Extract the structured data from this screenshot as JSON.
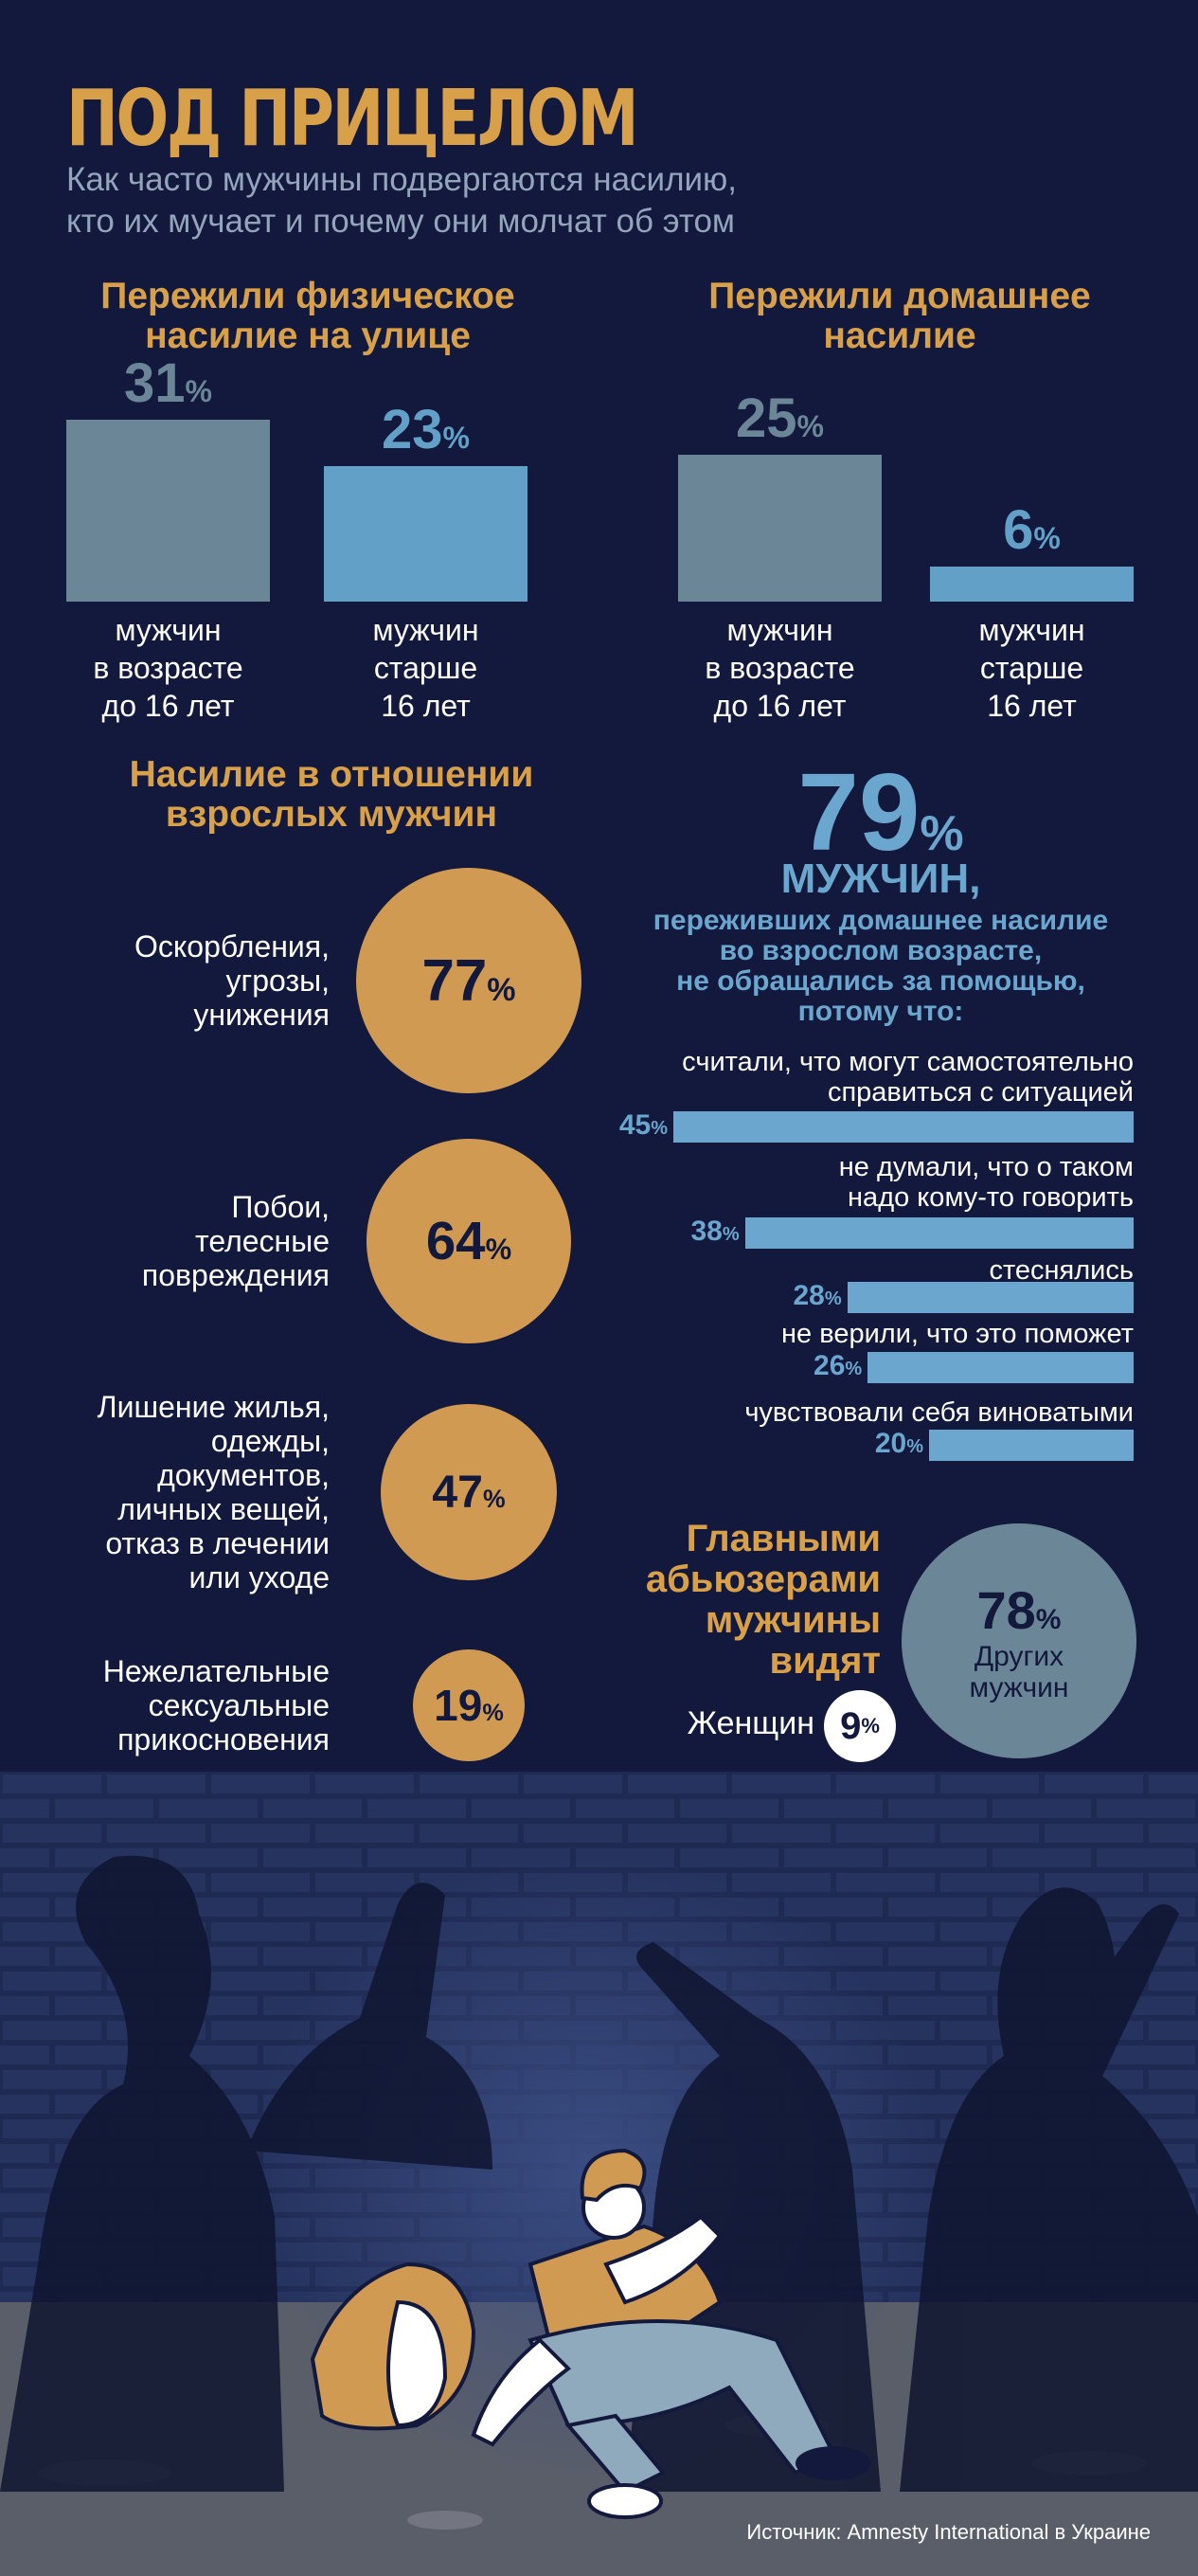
{
  "header": {
    "title": "ПОД ПРИЦЕЛОМ",
    "subtitle_line1": "Как часто мужчины подвергаются насилию,",
    "subtitle_line2": "кто их мучает и почему они молчат об этом"
  },
  "street": {
    "heading_line1": "Пережили физическое",
    "heading_line2": "насилие на улице",
    "bars": [
      {
        "value": 31,
        "label": [
          "мужчин",
          "в возрасте",
          "до 16 лет"
        ],
        "color": "#6b8797"
      },
      {
        "value": 23,
        "label": [
          "мужчин",
          "старше",
          "16 лет"
        ],
        "color": "#62a0c8"
      }
    ]
  },
  "domestic": {
    "heading_line1": "Пережили домашнее",
    "heading_line2": "насилие",
    "bars": [
      {
        "value": 25,
        "label": [
          "мужчин",
          "в возрасте",
          "до 16 лет"
        ],
        "color": "#6b8797"
      },
      {
        "value": 6,
        "label": [
          "мужчин",
          "старше",
          "16 лет"
        ],
        "color": "#62a0c8"
      }
    ]
  },
  "adult": {
    "heading_line1": "Насилие в отношении",
    "heading_line2": "взрослых мужчин",
    "items": [
      {
        "value": 77,
        "label": [
          "Оскорбления,",
          "угрозы,",
          "унижения"
        ]
      },
      {
        "value": 64,
        "label": [
          "Побои,",
          "телесные",
          "повреждения"
        ]
      },
      {
        "value": 47,
        "label": [
          "Лишение жилья,",
          "одежды,",
          "документов,",
          "личных вещей,",
          "отказ в лечении",
          "или уходе"
        ]
      },
      {
        "value": 19,
        "label": [
          "Нежелательные",
          "сексуальные",
          "прикосновения"
        ]
      }
    ]
  },
  "silence": {
    "big_value": "79",
    "big_unit": "%",
    "line_men": "МУЖЧИН,",
    "desc_lines": [
      "переживших домашнее насилие",
      "во взрослом возрасте,",
      "не обращались за помощью,",
      "потому что:"
    ],
    "reasons": [
      {
        "value": 45,
        "label": [
          "считали, что могут самостоятельно",
          "справиться с ситуацией"
        ]
      },
      {
        "value": 38,
        "label": [
          "не думали, что о таком",
          "надо кому-то говорить"
        ]
      },
      {
        "value": 28,
        "label": [
          "стеснялись"
        ]
      },
      {
        "value": 26,
        "label": [
          "не верили, что это поможет"
        ]
      },
      {
        "value": 20,
        "label": [
          "чувствовали себя виноватыми"
        ]
      }
    ]
  },
  "abusers": {
    "heading": [
      "Главными",
      "абьюзерами",
      "мужчины",
      "видят"
    ],
    "others_value": "78",
    "others_label_1": "Других",
    "others_label_2": "мужчин",
    "women_label": "Женщин",
    "women_value": "9"
  },
  "pct_sign": "%",
  "source": "Источник: Amnesty International в Украине",
  "colors": {
    "background": "#13193c",
    "orange": "#d19a52",
    "blue": "#62a0c8",
    "grey_blue": "#6b8797"
  },
  "chart_data": [
    {
      "type": "bar",
      "title": "Пережили физическое насилие на улице",
      "categories": [
        "мужчин в возрасте до 16 лет",
        "мужчин старше 16 лет"
      ],
      "values": [
        31,
        23
      ],
      "unit": "%"
    },
    {
      "type": "bar",
      "title": "Пережили домашнее насилие",
      "categories": [
        "мужчин в возрасте до 16 лет",
        "мужчин старше 16 лет"
      ],
      "values": [
        25,
        6
      ],
      "unit": "%"
    },
    {
      "type": "bubble",
      "title": "Насилие в отношении взрослых мужчин",
      "categories": [
        "Оскорбления, угрозы, унижения",
        "Побои, телесные повреждения",
        "Лишение жилья, одежды, документов, личных вещей, отказ в лечении или уходе",
        "Нежелательные сексуальные прикосновения"
      ],
      "values": [
        77,
        64,
        47,
        19
      ],
      "unit": "%"
    },
    {
      "type": "bar",
      "orientation": "horizontal",
      "title": "79% мужчин, переживших домашнее насилие во взрослом возрасте, не обращались за помощью, потому что:",
      "categories": [
        "считали, что могут самостоятельно справиться с ситуацией",
        "не думали, что о таком надо кому-то говорить",
        "стеснялись",
        "не верили, что это поможет",
        "чувствовали себя виноватыми"
      ],
      "values": [
        45,
        38,
        28,
        26,
        20
      ],
      "unit": "%"
    },
    {
      "type": "bubble",
      "title": "Главными абьюзерами мужчины видят",
      "categories": [
        "Других мужчин",
        "Женщин"
      ],
      "values": [
        78,
        9
      ],
      "unit": "%"
    }
  ]
}
